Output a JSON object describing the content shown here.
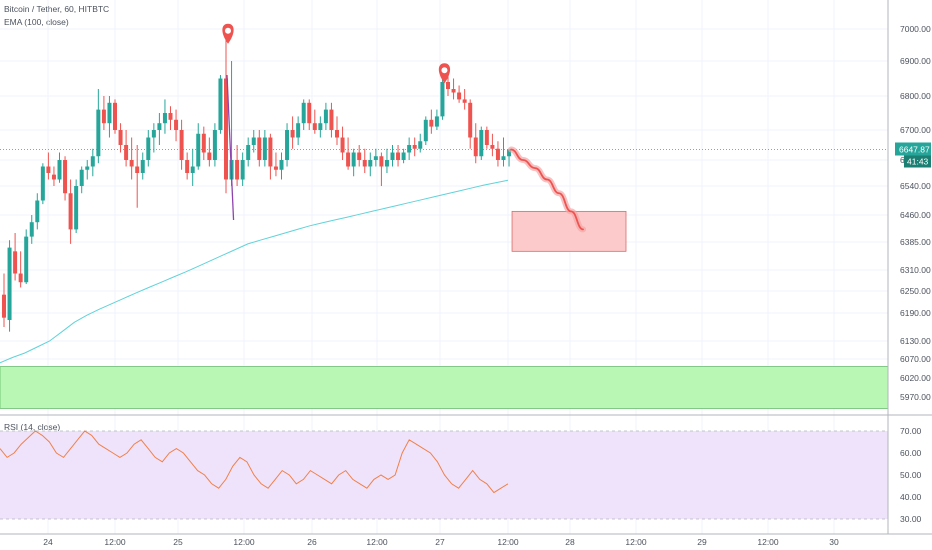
{
  "legend": {
    "symbol": "Bitcoin / Tether, 60, HITBTC",
    "ema": "EMA (100, close)",
    "rsi": "RSI (14, close)"
  },
  "price_labels": {
    "last_price": "6647.87",
    "countdown": "41:43"
  },
  "colors": {
    "up": "#26a69a",
    "down": "#ef5350",
    "ema": "#5fd3da",
    "rsi": "#f0804a",
    "green_zone": "#b8f7b4",
    "red_zone": "#fccaca",
    "marker": "#ef5350",
    "rsi_band": "#efe3fb"
  },
  "chart_data": [
    {
      "type": "candlestick",
      "title": "Bitcoin / Tether, 60, HITBTC",
      "price_axis": {
        "ticks": [
          7000,
          6900,
          6800,
          6700,
          6620,
          6540,
          6460,
          6385,
          6310,
          6250,
          6190,
          6130,
          6070,
          6020,
          5970
        ],
        "tick_labels": [
          "7000.00",
          "6900.00",
          "6800.00",
          "6700.00",
          "6620.00",
          "6540.00",
          "6460.00",
          "6385.00",
          "6310.00",
          "6250.00",
          "6190.00",
          "6130.00",
          "6070.00",
          "6020.00",
          "5970.00"
        ],
        "scale": "log"
      },
      "time_axis": {
        "labels": [
          "24",
          "12:00",
          "25",
          "12:00",
          "26",
          "12:00",
          "27",
          "12:00",
          "28",
          "12:00",
          "29",
          "12:00",
          "30"
        ]
      },
      "candles": [
        [
          6240,
          6300,
          6160,
          6180
        ],
        [
          6175,
          6390,
          6150,
          6370
        ],
        [
          6360,
          6410,
          6280,
          6300
        ],
        [
          6300,
          6360,
          6260,
          6275
        ],
        [
          6275,
          6420,
          6270,
          6400
        ],
        [
          6400,
          6460,
          6380,
          6440
        ],
        [
          6440,
          6520,
          6420,
          6500
        ],
        [
          6500,
          6610,
          6490,
          6600
        ],
        [
          6600,
          6640,
          6560,
          6580
        ],
        [
          6575,
          6600,
          6540,
          6560
        ],
        [
          6560,
          6640,
          6550,
          6620
        ],
        [
          6620,
          6630,
          6500,
          6520
        ],
        [
          6520,
          6560,
          6380,
          6420
        ],
        [
          6420,
          6560,
          6410,
          6540
        ],
        [
          6540,
          6600,
          6520,
          6590
        ],
        [
          6590,
          6620,
          6560,
          6600
        ],
        [
          6600,
          6650,
          6570,
          6630
        ],
        [
          6630,
          6820,
          6610,
          6760
        ],
        [
          6760,
          6800,
          6700,
          6720
        ],
        [
          6720,
          6800,
          6680,
          6780
        ],
        [
          6780,
          6790,
          6690,
          6700
        ],
        [
          6700,
          6720,
          6640,
          6660
        ],
        [
          6660,
          6700,
          6600,
          6620
        ],
        [
          6620,
          6680,
          6560,
          6600
        ],
        [
          6600,
          6660,
          6480,
          6580
        ],
        [
          6580,
          6640,
          6560,
          6620
        ],
        [
          6620,
          6700,
          6600,
          6680
        ],
        [
          6680,
          6720,
          6640,
          6700
        ],
        [
          6700,
          6750,
          6660,
          6720
        ],
        [
          6720,
          6790,
          6690,
          6750
        ],
        [
          6750,
          6770,
          6700,
          6730
        ],
        [
          6730,
          6760,
          6670,
          6700
        ],
        [
          6700,
          6730,
          6590,
          6620
        ],
        [
          6620,
          6640,
          6560,
          6580
        ],
        [
          6580,
          6650,
          6540,
          6600
        ],
        [
          6600,
          6720,
          6590,
          6690
        ],
        [
          6690,
          6710,
          6620,
          6640
        ],
        [
          6640,
          6680,
          6600,
          6620
        ],
        [
          6620,
          6720,
          6600,
          6700
        ],
        [
          6700,
          6860,
          6690,
          6850
        ],
        [
          6850,
          6970,
          6520,
          6560
        ],
        [
          6560,
          6900,
          6540,
          6620
        ],
        [
          6620,
          6660,
          6540,
          6560
        ],
        [
          6560,
          6640,
          6540,
          6620
        ],
        [
          6620,
          6680,
          6600,
          6660
        ],
        [
          6660,
          6700,
          6640,
          6680
        ],
        [
          6680,
          6700,
          6600,
          6620
        ],
        [
          6620,
          6700,
          6600,
          6680
        ],
        [
          6680,
          6690,
          6560,
          6600
        ],
        [
          6600,
          6640,
          6570,
          6590
        ],
        [
          6590,
          6640,
          6560,
          6620
        ],
        [
          6620,
          6720,
          6600,
          6700
        ],
        [
          6700,
          6740,
          6650,
          6680
        ],
        [
          6680,
          6740,
          6660,
          6720
        ],
        [
          6720,
          6790,
          6700,
          6780
        ],
        [
          6780,
          6790,
          6700,
          6720
        ],
        [
          6720,
          6760,
          6690,
          6700
        ],
        [
          6700,
          6740,
          6680,
          6720
        ],
        [
          6720,
          6780,
          6700,
          6760
        ],
        [
          6760,
          6780,
          6680,
          6700
        ],
        [
          6700,
          6740,
          6660,
          6680
        ],
        [
          6680,
          6710,
          6620,
          6640
        ],
        [
          6640,
          6680,
          6590,
          6600
        ],
        [
          6600,
          6650,
          6570,
          6640
        ],
        [
          6640,
          6660,
          6600,
          6620
        ],
        [
          6620,
          6650,
          6580,
          6600
        ],
        [
          6600,
          6640,
          6570,
          6620
        ],
        [
          6620,
          6650,
          6600,
          6630
        ],
        [
          6630,
          6640,
          6540,
          6600
        ],
        [
          6600,
          6650,
          6580,
          6620
        ],
        [
          6620,
          6660,
          6600,
          6640
        ],
        [
          6640,
          6660,
          6600,
          6620
        ],
        [
          6620,
          6650,
          6610,
          6640
        ],
        [
          6640,
          6680,
          6620,
          6660
        ],
        [
          6660,
          6680,
          6630,
          6650
        ],
        [
          6650,
          6690,
          6640,
          6670
        ],
        [
          6670,
          6740,
          6660,
          6730
        ],
        [
          6730,
          6760,
          6690,
          6710
        ],
        [
          6710,
          6760,
          6700,
          6740
        ],
        [
          6740,
          6860,
          6730,
          6840
        ],
        [
          6840,
          6870,
          6800,
          6820
        ],
        [
          6820,
          6850,
          6790,
          6810
        ],
        [
          6810,
          6830,
          6780,
          6790
        ],
        [
          6790,
          6820,
          6760,
          6780
        ],
        [
          6780,
          6790,
          6650,
          6680
        ],
        [
          6680,
          6720,
          6610,
          6630
        ],
        [
          6630,
          6710,
          6620,
          6700
        ],
        [
          6700,
          6710,
          6650,
          6660
        ],
        [
          6660,
          6690,
          6630,
          6650
        ],
        [
          6650,
          6670,
          6600,
          6620
        ],
        [
          6620,
          6680,
          6600,
          6630
        ],
        [
          6630,
          6650,
          6600,
          6648
        ]
      ],
      "ema_100": [
        6060,
        6075,
        6090,
        6110,
        6130,
        6150,
        6170,
        6185,
        6200,
        6215,
        6230,
        6245,
        6260,
        6275,
        6290,
        6305,
        6320,
        6335,
        6350,
        6365,
        6380,
        6390,
        6400,
        6410,
        6420,
        6430,
        6438,
        6446,
        6454,
        6462,
        6470,
        6478,
        6486,
        6494,
        6502,
        6510,
        6518,
        6526,
        6534,
        6542,
        6550,
        6558
      ],
      "projection_path": [
        6648,
        6620,
        6595,
        6560,
        6520,
        6470,
        6420
      ],
      "markers": [
        {
          "price": 6985,
          "candle_index": 40
        },
        {
          "price": 6865,
          "candle_index": 79
        }
      ],
      "zones": [
        {
          "type": "support",
          "price_top": 6050,
          "price_bottom": 5940,
          "color": "#b8f7b4"
        },
        {
          "type": "target",
          "price_top": 6470,
          "price_bottom": 6360,
          "color": "#fccaca"
        }
      ]
    },
    {
      "type": "line",
      "title": "RSI (14, close)",
      "ylim": [
        25,
        75
      ],
      "ticks": [
        70,
        60,
        50,
        40,
        30
      ],
      "tick_labels": [
        "70.00",
        "60.00",
        "50.00",
        "40.00",
        "30.00"
      ],
      "band": [
        30,
        70
      ],
      "values": [
        62,
        58,
        60,
        64,
        67,
        70,
        68,
        65,
        60,
        58,
        62,
        66,
        70,
        68,
        64,
        62,
        60,
        58,
        60,
        64,
        66,
        62,
        58,
        56,
        60,
        62,
        60,
        56,
        52,
        50,
        46,
        44,
        48,
        54,
        58,
        56,
        50,
        46,
        44,
        48,
        52,
        50,
        46,
        48,
        52,
        50,
        48,
        46,
        50,
        52,
        48,
        46,
        44,
        48,
        50,
        48,
        50,
        60,
        66,
        64,
        62,
        60,
        56,
        50,
        46,
        44,
        48,
        52,
        48,
        46,
        42,
        44,
        46
      ]
    }
  ]
}
